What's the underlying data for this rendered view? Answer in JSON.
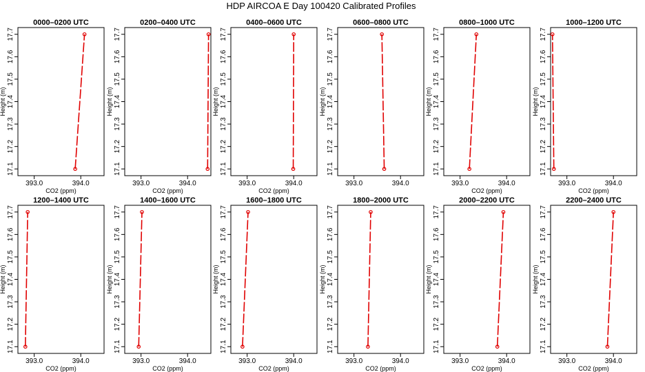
{
  "figure": {
    "title": "HDP AIRCOA E  Day 100420  Calibrated Profiles"
  },
  "style": {
    "line_color": "#e00000",
    "marker_color": "#e00000",
    "frame_color": "#000000"
  },
  "chart_data": [
    {
      "type": "line",
      "title": "0000–0200 UTC",
      "xlabel": "CO2 (ppm)",
      "ylabel": "Height (m)",
      "xlim": [
        392.65,
        394.5
      ],
      "ylim": [
        17.07,
        17.73
      ],
      "xticks": [
        "393.0",
        "394.0"
      ],
      "xtick_values": [
        393.0,
        394.0
      ],
      "yticks": [
        "17.1",
        "17.2",
        "17.3",
        "17.4",
        "17.5",
        "17.6",
        "17.7"
      ],
      "ytick_values": [
        17.1,
        17.2,
        17.3,
        17.4,
        17.5,
        17.6,
        17.7
      ],
      "series": [
        {
          "x": [
            393.88,
            394.08
          ],
          "y": [
            17.1,
            17.7
          ]
        }
      ]
    },
    {
      "type": "line",
      "title": "0200–0400 UTC",
      "xlabel": "CO2 (ppm)",
      "ylabel": "Height (m)",
      "xlim": [
        392.65,
        394.5
      ],
      "ylim": [
        17.07,
        17.73
      ],
      "xticks": [
        "393.0",
        "394.0"
      ],
      "xtick_values": [
        393.0,
        394.0
      ],
      "yticks": [
        "17.1",
        "17.2",
        "17.3",
        "17.4",
        "17.5",
        "17.6",
        "17.7"
      ],
      "ytick_values": [
        17.1,
        17.2,
        17.3,
        17.4,
        17.5,
        17.6,
        17.7
      ],
      "series": [
        {
          "x": [
            394.43,
            394.45
          ],
          "y": [
            17.1,
            17.7
          ]
        }
      ]
    },
    {
      "type": "line",
      "title": "0400–0600 UTC",
      "xlabel": "CO2 (ppm)",
      "ylabel": "Height (m)",
      "xlim": [
        392.65,
        394.5
      ],
      "ylim": [
        17.07,
        17.73
      ],
      "xticks": [
        "393.0",
        "394.0"
      ],
      "xtick_values": [
        393.0,
        394.0
      ],
      "yticks": [
        "17.1",
        "17.2",
        "17.3",
        "17.4",
        "17.5",
        "17.6",
        "17.7"
      ],
      "ytick_values": [
        17.1,
        17.2,
        17.3,
        17.4,
        17.5,
        17.6,
        17.7
      ],
      "series": [
        {
          "x": [
            393.99,
            394.0
          ],
          "y": [
            17.1,
            17.7
          ]
        }
      ]
    },
    {
      "type": "line",
      "title": "0600–0800 UTC",
      "xlabel": "",
      "ylabel": "Height (m)",
      "xlim": [
        392.65,
        394.5
      ],
      "ylim": [
        17.07,
        17.73
      ],
      "xticks": [
        "393.0",
        "394.0"
      ],
      "xtick_values": [
        393.0,
        394.0
      ],
      "yticks": [
        "17.1",
        "17.2",
        "17.3",
        "17.4",
        "17.5",
        "17.6",
        "17.7"
      ],
      "ytick_values": [
        17.1,
        17.2,
        17.3,
        17.4,
        17.5,
        17.6,
        17.7
      ],
      "series": [
        {
          "x": [
            393.65,
            393.6
          ],
          "y": [
            17.1,
            17.7
          ]
        }
      ]
    },
    {
      "type": "line",
      "title": "0800–1000 UTC",
      "xlabel": "CO2 (ppm)",
      "ylabel": "Height (m)",
      "xlim": [
        392.65,
        394.5
      ],
      "ylim": [
        17.07,
        17.73
      ],
      "xticks": [
        "393.0",
        "394.0"
      ],
      "xtick_values": [
        393.0,
        394.0
      ],
      "yticks": [
        "17.1",
        "17.2",
        "17.3",
        "17.4",
        "17.5",
        "17.6",
        "17.7"
      ],
      "ytick_values": [
        17.1,
        17.2,
        17.3,
        17.4,
        17.5,
        17.6,
        17.7
      ],
      "series": [
        {
          "x": [
            393.2,
            393.35
          ],
          "y": [
            17.1,
            17.7
          ]
        }
      ]
    },
    {
      "type": "line",
      "title": "1000–1200 UTC",
      "xlabel": "CO2 (ppm)",
      "ylabel": "Height (m)",
      "xlim": [
        392.65,
        394.5
      ],
      "ylim": [
        17.07,
        17.73
      ],
      "xticks": [
        "393.0",
        "394.0"
      ],
      "xtick_values": [
        393.0,
        394.0
      ],
      "yticks": [
        "17.1",
        "17.2",
        "17.3",
        "17.4",
        "17.5",
        "17.6",
        "17.7"
      ],
      "ytick_values": [
        17.1,
        17.2,
        17.3,
        17.4,
        17.5,
        17.6,
        17.7
      ],
      "series": [
        {
          "x": [
            392.72,
            392.69
          ],
          "y": [
            17.1,
            17.7
          ]
        }
      ]
    },
    {
      "type": "line",
      "title": "1200–1400 UTC",
      "xlabel": "CO2 (ppm)",
      "ylabel": "Height (m)",
      "xlim": [
        392.65,
        394.5
      ],
      "ylim": [
        17.07,
        17.73
      ],
      "xticks": [
        "393.0",
        "394.0"
      ],
      "xtick_values": [
        393.0,
        394.0
      ],
      "yticks": [
        "17.1",
        "17.2",
        "17.3",
        "17.4",
        "17.5",
        "17.6",
        "17.7"
      ],
      "ytick_values": [
        17.1,
        17.2,
        17.3,
        17.4,
        17.5,
        17.6,
        17.7
      ],
      "series": [
        {
          "x": [
            392.81,
            392.86
          ],
          "y": [
            17.1,
            17.7
          ]
        }
      ]
    },
    {
      "type": "line",
      "title": "1400–1600 UTC",
      "xlabel": "CO2 (ppm)",
      "ylabel": "Height (m)",
      "xlim": [
        392.65,
        394.5
      ],
      "ylim": [
        17.07,
        17.73
      ],
      "xticks": [
        "393.0",
        "394.0"
      ],
      "xtick_values": [
        393.0,
        394.0
      ],
      "yticks": [
        "17.1",
        "17.2",
        "17.3",
        "17.4",
        "17.5",
        "17.6",
        "17.7"
      ],
      "ytick_values": [
        17.1,
        17.2,
        17.3,
        17.4,
        17.5,
        17.6,
        17.7
      ],
      "series": [
        {
          "x": [
            392.95,
            393.02
          ],
          "y": [
            17.1,
            17.7
          ]
        }
      ]
    },
    {
      "type": "line",
      "title": "1600–1800 UTC",
      "xlabel": "CO2 (ppm)",
      "ylabel": "Height (m)",
      "xlim": [
        392.65,
        394.5
      ],
      "ylim": [
        17.07,
        17.73
      ],
      "xticks": [
        "393.0",
        "394.0"
      ],
      "xtick_values": [
        393.0,
        394.0
      ],
      "yticks": [
        "17.1",
        "17.2",
        "17.3",
        "17.4",
        "17.5",
        "17.6",
        "17.7"
      ],
      "ytick_values": [
        17.1,
        17.2,
        17.3,
        17.4,
        17.5,
        17.6,
        17.7
      ],
      "series": [
        {
          "x": [
            392.9,
            393.02
          ],
          "y": [
            17.1,
            17.7
          ]
        }
      ]
    },
    {
      "type": "line",
      "title": "1800–2000 UTC",
      "xlabel": "CO2 (ppm)",
      "ylabel": "Height (m)",
      "xlim": [
        392.65,
        394.5
      ],
      "ylim": [
        17.07,
        17.73
      ],
      "xticks": [
        "393.0",
        "394.0"
      ],
      "xtick_values": [
        393.0,
        394.0
      ],
      "yticks": [
        "17.1",
        "17.2",
        "17.3",
        "17.4",
        "17.5",
        "17.6",
        "17.7"
      ],
      "ytick_values": [
        17.1,
        17.2,
        17.3,
        17.4,
        17.5,
        17.6,
        17.7
      ],
      "series": [
        {
          "x": [
            393.3,
            393.36
          ],
          "y": [
            17.1,
            17.7
          ]
        }
      ]
    },
    {
      "type": "line",
      "title": "2000–2200 UTC",
      "xlabel": "CO2 (ppm)",
      "ylabel": "Height (m)",
      "xlim": [
        392.65,
        394.5
      ],
      "ylim": [
        17.07,
        17.73
      ],
      "xticks": [
        "393.0",
        "394.0"
      ],
      "xtick_values": [
        393.0,
        394.0
      ],
      "yticks": [
        "17.1",
        "17.2",
        "17.3",
        "17.4",
        "17.5",
        "17.6",
        "17.7"
      ],
      "ytick_values": [
        17.1,
        17.2,
        17.3,
        17.4,
        17.5,
        17.6,
        17.7
      ],
      "series": [
        {
          "x": [
            393.8,
            393.93
          ],
          "y": [
            17.1,
            17.7
          ]
        }
      ]
    },
    {
      "type": "line",
      "title": "2200–2400 UTC",
      "xlabel": "CO2 (ppm)",
      "ylabel": "Height (m)",
      "xlim": [
        392.65,
        394.5
      ],
      "ylim": [
        17.07,
        17.73
      ],
      "xticks": [
        "393.0",
        "394.0"
      ],
      "xtick_values": [
        393.0,
        394.0
      ],
      "yticks": [
        "17.1",
        "17.2",
        "17.3",
        "17.4",
        "17.5",
        "17.6",
        "17.7"
      ],
      "ytick_values": [
        17.1,
        17.2,
        17.3,
        17.4,
        17.5,
        17.6,
        17.7
      ],
      "series": [
        {
          "x": [
            393.87,
            394.0
          ],
          "y": [
            17.1,
            17.7
          ]
        }
      ]
    }
  ]
}
